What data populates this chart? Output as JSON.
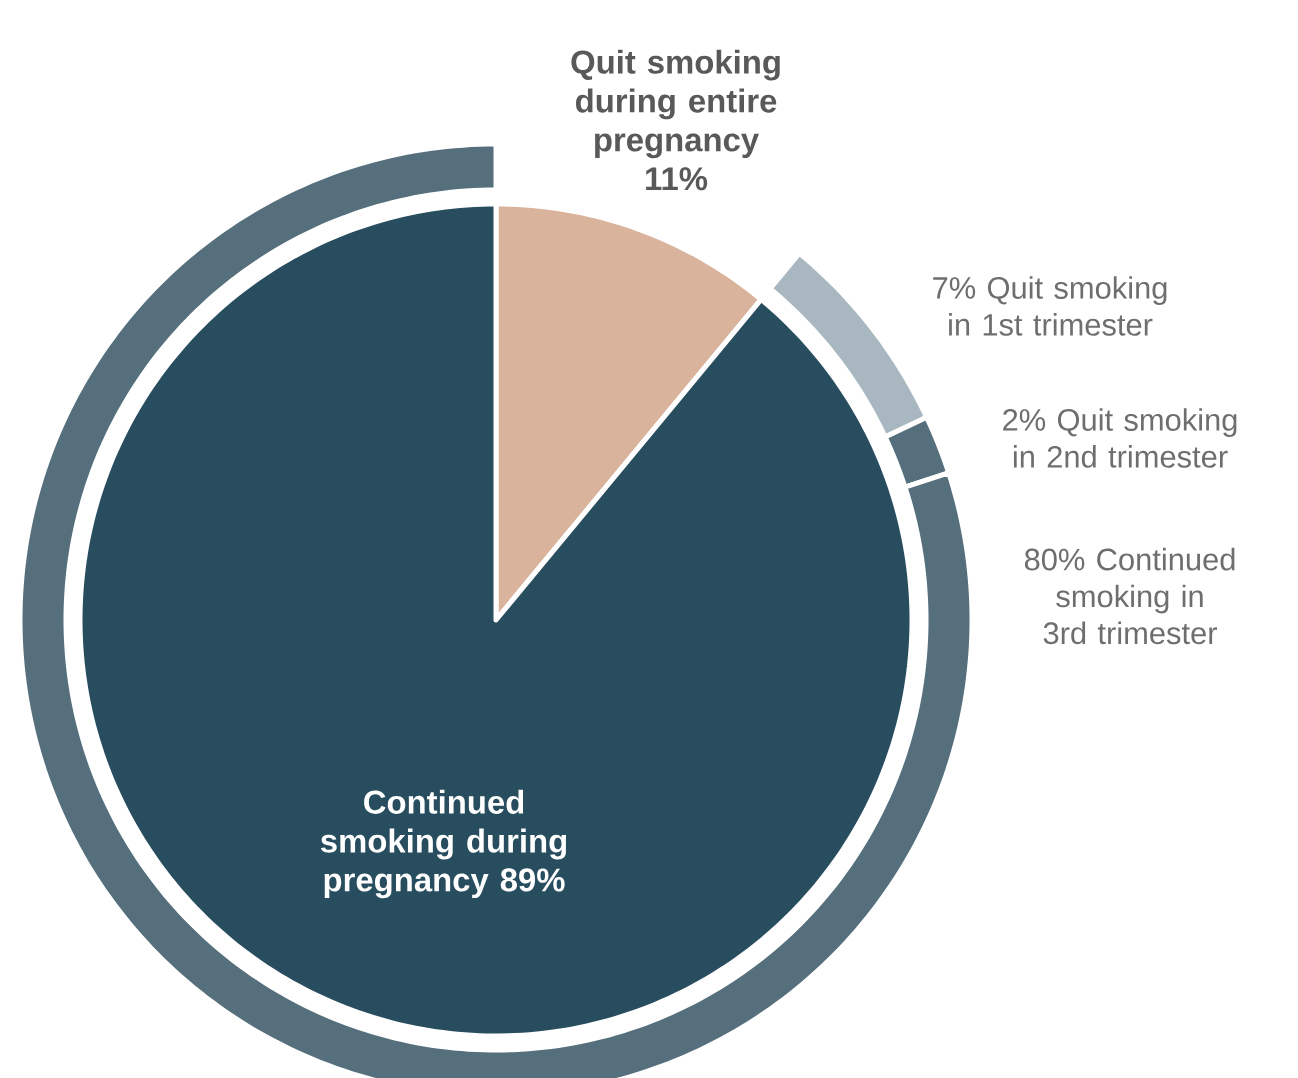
{
  "chart_data": [
    {
      "type": "pie",
      "categories": [
        "Quit smoking during entire pregnancy 11%",
        "Continued smoking during pregnancy 89%"
      ],
      "values": [
        11,
        89
      ],
      "colors": [
        "#d9b39b",
        "#284d5f"
      ]
    },
    {
      "type": "donut",
      "categories": [
        "7% Quit smoking in 1st trimester",
        "2% Quit smoking in 2nd trimester",
        "80% Continued smoking in 3rd trimester"
      ],
      "values": [
        7,
        2,
        80
      ],
      "colors": [
        "#a9b8c0",
        "#566f7c",
        "#566f7c"
      ]
    }
  ]
}
